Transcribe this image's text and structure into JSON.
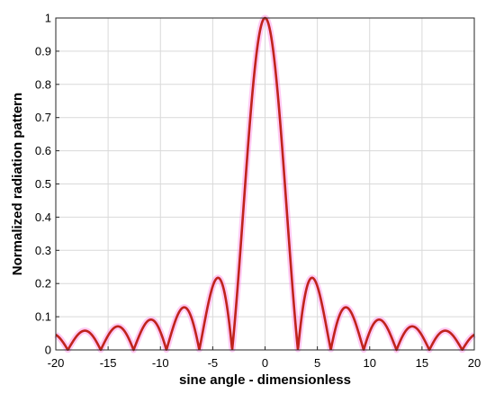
{
  "chart_data": {
    "type": "line",
    "title": "",
    "xlabel": "sine angle - dimensionless",
    "ylabel": "Normalized radiation pattern",
    "xlim": [
      -20,
      20
    ],
    "ylim": [
      0,
      1
    ],
    "xticks": [
      -20,
      -15,
      -10,
      -5,
      0,
      5,
      10,
      15,
      20
    ],
    "yticks": [
      0,
      0.1,
      0.2,
      0.3,
      0.4,
      0.5,
      0.6,
      0.7,
      0.8,
      0.9,
      1
    ],
    "grid": true,
    "series": [
      {
        "function": "abs(sin(x)/x)",
        "x_range": [
          -20,
          20
        ],
        "peak": {
          "x": 0,
          "y": 1
        },
        "nulls": [
          -18.85,
          -15.71,
          -12.57,
          -9.42,
          -6.28,
          -3.14,
          3.14,
          6.28,
          9.42,
          12.57,
          15.71,
          18.85
        ],
        "sidelobe_peaks": [
          {
            "x": -4.49,
            "y": 0.13
          },
          {
            "x": -7.73,
            "y": 0.06
          },
          {
            "x": -10.9,
            "y": 0.04
          },
          {
            "x": -14.07,
            "y": 0.03
          },
          {
            "x": -17.22,
            "y": 0.02
          },
          {
            "x": 4.49,
            "y": 0.13
          },
          {
            "x": 7.73,
            "y": 0.06
          },
          {
            "x": 10.9,
            "y": 0.04
          },
          {
            "x": 14.07,
            "y": 0.03
          },
          {
            "x": 17.22,
            "y": 0.02
          }
        ],
        "color": "#c0231c",
        "halo_color": "#ff8ce6"
      }
    ]
  }
}
